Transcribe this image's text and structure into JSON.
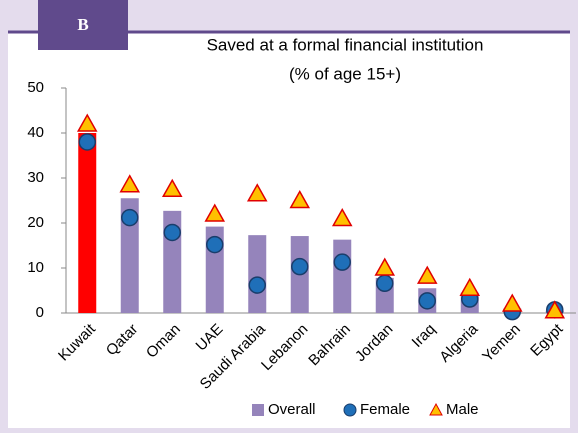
{
  "chart_data": {
    "type": "bar",
    "panel_label": "B",
    "title": "Saved at a formal financial institution",
    "subtitle": "(% of age 15+)",
    "categories": [
      "Kuwait",
      "Qatar",
      "Oman",
      "UAE",
      "Saudi Arabia",
      "Lebanon",
      "Bahrain",
      "Jordan",
      "Iraq",
      "Algeria",
      "Yemen",
      "Egypt"
    ],
    "series": [
      {
        "name": "Overall",
        "mark": "bar",
        "color": "#9584bb",
        "colors": [
          "#ff0000",
          "#9584bb",
          "#9584bb",
          "#9584bb",
          "#9584bb",
          "#9584bb",
          "#9584bb",
          "#9584bb",
          "#9584bb",
          "#9584bb",
          "#9584bb",
          "#9584bb"
        ],
        "values": [
          40,
          25.5,
          22.7,
          19.2,
          17.3,
          17.1,
          16.3,
          7.8,
          5.5,
          4.5,
          1,
          0.5
        ]
      },
      {
        "name": "Female",
        "mark": "circle",
        "color": "#1f6fb8",
        "values": [
          38,
          21.2,
          17.9,
          15.2,
          6.2,
          10.3,
          11.3,
          6.6,
          2.7,
          3.1,
          0.3,
          0.7
        ]
      },
      {
        "name": "Male",
        "mark": "triangle",
        "color": "#ffc000",
        "values": [
          42,
          28.5,
          27.5,
          22,
          26.5,
          25,
          21,
          10,
          8.2,
          5.5,
          2,
          0.5
        ]
      }
    ],
    "ylim": [
      0,
      50
    ],
    "yticks": [
      0,
      10,
      20,
      30,
      40,
      50
    ],
    "grid": false,
    "legend": "bottom"
  }
}
